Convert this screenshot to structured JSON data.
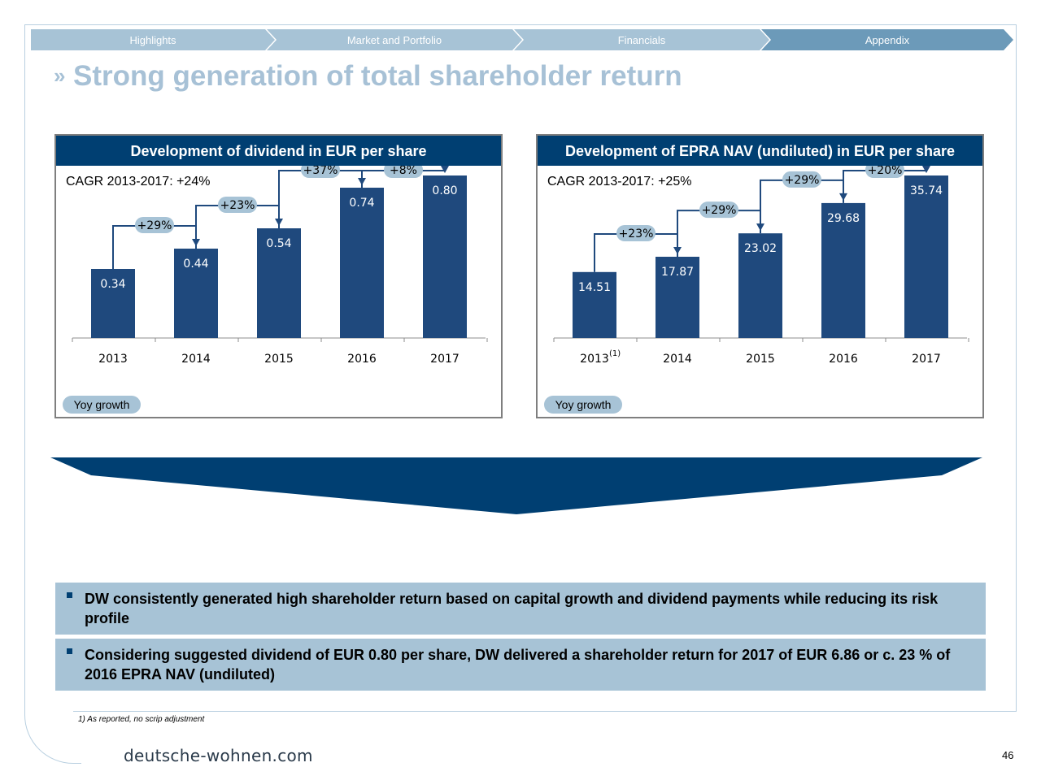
{
  "nav": {
    "tabs": [
      {
        "label": "Highlights",
        "color": "#a7c3d6"
      },
      {
        "label": "Market and Portfolio",
        "color": "#a7c3d6"
      },
      {
        "label": "Financials",
        "color": "#a7c3d6"
      },
      {
        "label": "Appendix",
        "color": "#6c9ab9"
      }
    ]
  },
  "title": {
    "mark": "»",
    "text": "Strong generation of total shareholder return"
  },
  "colors": {
    "bar": "#1f497d",
    "header": "#003f72",
    "pill": "#a7c3d6",
    "title": "#a7c1d6"
  },
  "chart_data": [
    {
      "type": "bar",
      "title": "Development of dividend in EUR per share",
      "subtitle": "CAGR 2013-2017: +24%",
      "categories": [
        "2013",
        "2014",
        "2015",
        "2016",
        "2017"
      ],
      "category_superscripts": [
        "",
        "",
        "",
        "",
        ""
      ],
      "values": [
        0.34,
        0.44,
        0.54,
        0.74,
        0.8
      ],
      "value_labels": [
        "0.34",
        "0.44",
        "0.54",
        "0.74",
        "0.80"
      ],
      "growth_labels": [
        "+29%",
        "+23%",
        "+37%",
        "+8%"
      ],
      "ylim": [
        0,
        0.8
      ],
      "legend": "Yoy growth"
    },
    {
      "type": "bar",
      "title": "Development of EPRA NAV (undiluted) in EUR per share",
      "subtitle": "CAGR 2013-2017: +25%",
      "categories": [
        "2013",
        "2014",
        "2015",
        "2016",
        "2017"
      ],
      "category_superscripts": [
        "(1)",
        "",
        "",
        "",
        ""
      ],
      "values": [
        14.51,
        17.87,
        23.02,
        29.68,
        35.74
      ],
      "value_labels": [
        "14.51",
        "17.87",
        "23.02",
        "29.68",
        "35.74"
      ],
      "growth_labels": [
        "+23%",
        "+29%",
        "+29%",
        "+20%"
      ],
      "ylim": [
        0,
        35.74
      ],
      "legend": "Yoy growth"
    }
  ],
  "bullets": [
    "DW consistently generated high shareholder return based on capital growth and dividend payments while reducing its risk profile",
    "Considering suggested dividend of EUR 0.80 per share, DW delivered a shareholder return for 2017 of EUR 6.86 or c. 23 % of 2016 EPRA NAV (undiluted)"
  ],
  "footnote": "1) As reported, no scrip adjustment",
  "footer": {
    "website": "deutsche-wohnen.com",
    "page": "46"
  }
}
